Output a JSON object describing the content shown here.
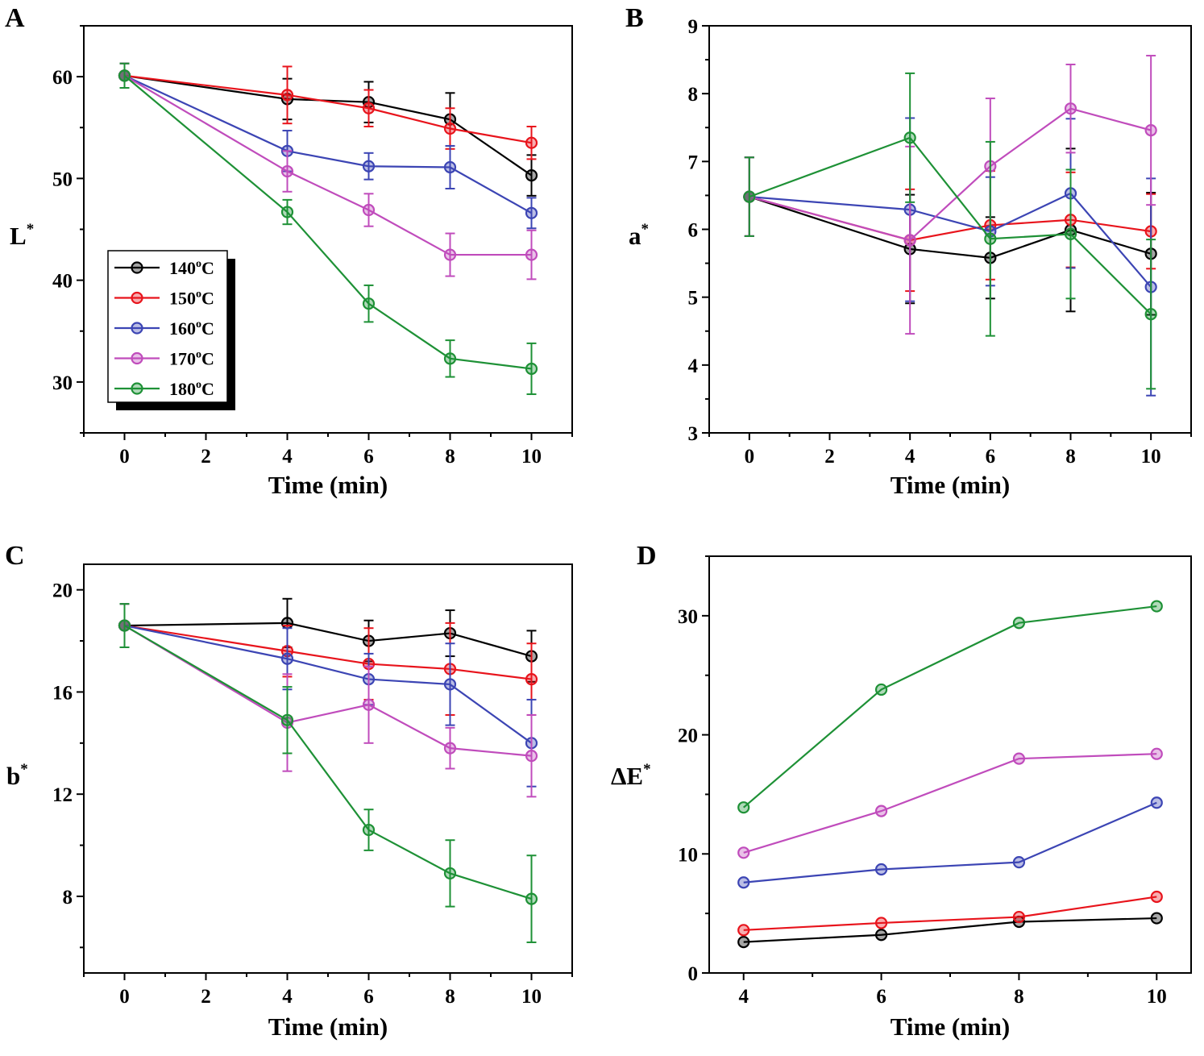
{
  "figure": {
    "series_colors": {
      "140°C": "#000000",
      "150°C": "#e8141c",
      "160°C": "#3c45b4",
      "170°C": "#c04cbc",
      "180°C": "#1e9136"
    }
  },
  "chart_data": [
    {
      "panel": "A",
      "type": "line",
      "xlabel": "Time (min)",
      "ylabel_main": "L",
      "ylabel_sup": "*",
      "xlim": [
        -1,
        11
      ],
      "ylim": [
        25,
        65
      ],
      "xticks": [
        0,
        2,
        4,
        6,
        8,
        10
      ],
      "yticks": [
        30,
        40,
        50,
        60
      ],
      "x": [
        0,
        4,
        6,
        8,
        10
      ],
      "legend": {
        "position": "bottom-left",
        "entries": [
          {
            "main": "140",
            "sup": "o",
            "unit": "C"
          },
          {
            "main": "150",
            "sup": "o",
            "unit": "C"
          },
          {
            "main": "160",
            "sup": "o",
            "unit": "C"
          },
          {
            "main": "170",
            "sup": "o",
            "unit": "C"
          },
          {
            "main": "180",
            "sup": "o",
            "unit": "C"
          }
        ]
      },
      "series": [
        {
          "name": "140°C",
          "values": [
            60.1,
            57.8,
            57.5,
            55.8,
            50.3
          ],
          "errors": [
            1.2,
            2.0,
            2.0,
            2.6,
            2.0
          ]
        },
        {
          "name": "150°C",
          "values": [
            60.1,
            58.2,
            56.9,
            54.9,
            53.5
          ],
          "errors": [
            1.2,
            2.8,
            1.8,
            2.0,
            1.6
          ]
        },
        {
          "name": "160°C",
          "values": [
            60.1,
            52.7,
            51.2,
            51.1,
            46.6
          ],
          "errors": [
            1.2,
            2.0,
            1.3,
            2.1,
            1.5
          ]
        },
        {
          "name": "170°C",
          "values": [
            60.1,
            50.7,
            46.9,
            42.5,
            42.5
          ],
          "errors": [
            1.2,
            2.0,
            1.6,
            2.1,
            2.4
          ]
        },
        {
          "name": "180°C",
          "values": [
            60.1,
            46.7,
            37.7,
            32.3,
            31.3
          ],
          "errors": [
            1.2,
            1.2,
            1.8,
            1.8,
            2.5
          ]
        }
      ]
    },
    {
      "panel": "B",
      "type": "line",
      "xlabel": "Time (min)",
      "ylabel_main": "a",
      "ylabel_sup": "*",
      "xlim": [
        -1,
        11
      ],
      "ylim": [
        3,
        9
      ],
      "xticks": [
        0,
        2,
        4,
        6,
        8,
        10
      ],
      "yticks": [
        3,
        4,
        5,
        6,
        7,
        8,
        9
      ],
      "x": [
        0,
        4,
        6,
        8,
        10
      ],
      "series": [
        {
          "name": "140°C",
          "values": [
            6.48,
            5.71,
            5.58,
            5.99,
            5.64
          ],
          "errors": [
            0.58,
            0.8,
            0.6,
            1.2,
            0.9
          ]
        },
        {
          "name": "150°C",
          "values": [
            6.48,
            5.84,
            6.06,
            6.14,
            5.97
          ],
          "errors": [
            0.58,
            0.75,
            0.8,
            0.7,
            0.55
          ]
        },
        {
          "name": "160°C",
          "values": [
            6.48,
            6.29,
            5.97,
            6.53,
            5.15
          ],
          "errors": [
            0.58,
            1.35,
            0.8,
            1.1,
            1.6
          ]
        },
        {
          "name": "170°C",
          "values": [
            6.48,
            5.84,
            6.93,
            7.78,
            7.46
          ],
          "errors": [
            0.58,
            1.38,
            1.0,
            0.65,
            1.1
          ]
        },
        {
          "name": "180°C",
          "values": [
            6.48,
            7.35,
            5.86,
            5.93,
            4.75
          ],
          "errors": [
            0.58,
            0.95,
            1.43,
            0.95,
            1.1
          ]
        }
      ]
    },
    {
      "panel": "C",
      "type": "line",
      "xlabel": "Time (min)",
      "ylabel_main": "b",
      "ylabel_sup": "*",
      "xlim": [
        -1,
        11
      ],
      "ylim": [
        5,
        21
      ],
      "xticks": [
        0,
        2,
        4,
        6,
        8,
        10
      ],
      "yticks": [
        8,
        12,
        16,
        20
      ],
      "x": [
        0,
        4,
        6,
        8,
        10
      ],
      "series": [
        {
          "name": "140°C",
          "values": [
            18.6,
            18.7,
            18.0,
            18.3,
            17.4
          ],
          "errors": [
            0.85,
            0.95,
            0.8,
            0.9,
            1.0
          ]
        },
        {
          "name": "150°C",
          "values": [
            18.6,
            17.6,
            17.1,
            16.9,
            16.5
          ],
          "errors": [
            0.85,
            1.0,
            1.4,
            1.8,
            1.4
          ]
        },
        {
          "name": "160°C",
          "values": [
            18.6,
            17.3,
            16.5,
            16.3,
            14.0
          ],
          "errors": [
            0.85,
            1.2,
            1.0,
            1.6,
            1.7
          ]
        },
        {
          "name": "170°C",
          "values": [
            18.6,
            14.8,
            15.5,
            13.8,
            13.5
          ],
          "errors": [
            0.85,
            1.9,
            1.5,
            0.8,
            1.6
          ]
        },
        {
          "name": "180°C",
          "values": [
            18.6,
            14.9,
            10.6,
            8.9,
            7.9
          ],
          "errors": [
            0.85,
            1.3,
            0.8,
            1.3,
            1.7
          ]
        }
      ]
    },
    {
      "panel": "D",
      "type": "line",
      "xlabel": "Time (min)",
      "ylabel_main": "ΔE",
      "ylabel_sup": "*",
      "xlim": [
        3.5,
        10.5
      ],
      "ylim": [
        0,
        35
      ],
      "xticks": [
        4,
        6,
        8,
        10
      ],
      "yticks": [
        0,
        10,
        20,
        30
      ],
      "x": [
        4,
        6,
        8,
        10
      ],
      "series": [
        {
          "name": "140°C",
          "values": [
            2.6,
            3.2,
            4.3,
            4.6
          ]
        },
        {
          "name": "150°C",
          "values": [
            3.6,
            4.2,
            4.7,
            6.4
          ]
        },
        {
          "name": "160°C",
          "values": [
            7.6,
            8.7,
            9.3,
            14.3
          ]
        },
        {
          "name": "170°C",
          "values": [
            10.1,
            13.6,
            18.0,
            18.4
          ]
        },
        {
          "name": "180°C",
          "values": [
            13.9,
            23.8,
            29.4,
            30.8
          ]
        }
      ]
    }
  ]
}
